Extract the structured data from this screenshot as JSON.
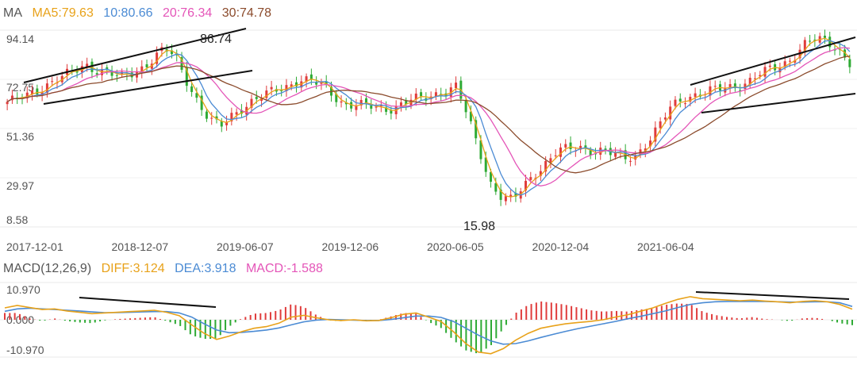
{
  "colors": {
    "up": "#e03c3c",
    "down": "#2eaa34",
    "ma5": "#e8a21a",
    "ma10": "#4b8bd4",
    "ma20": "#e455b8",
    "ma30": "#8b4b2c",
    "diff": "#e8a21a",
    "dea": "#4b8bd4",
    "macd": "#e455b8",
    "label": "#555555",
    "grid": "#e8e8e8",
    "trend": "#111111"
  },
  "legend": {
    "ma": {
      "title": "MA",
      "ma5": "MA5:79.63",
      "ma10": "10:80.66",
      "ma20": "20:76.34",
      "ma30": "30:74.78"
    },
    "macd": {
      "title": "MACD(12,26,9)",
      "diff": "DIFF:3.124",
      "dea": "DEA:3.918",
      "macd": "MACD:-1.588"
    }
  },
  "chart_data": [
    {
      "type": "candlestick",
      "title": "",
      "x_ticks": [
        "2017-12-01",
        "2018-12-07",
        "2019-06-07",
        "2019-12-06",
        "2020-06-05",
        "2020-12-04",
        "2021-06-04"
      ],
      "y_ticks": [
        "94.14",
        "72.75",
        "51.36",
        "29.97",
        "8.58"
      ],
      "ylim": [
        8.58,
        94.14
      ],
      "annotations": {
        "high": "86.74",
        "low": "15.98"
      },
      "grid": true,
      "legend_position": "top-left",
      "series_levels": [
        63,
        64,
        66,
        69,
        72,
        74,
        76,
        79,
        77,
        76,
        73,
        75,
        78,
        82,
        86,
        82,
        72,
        63,
        55,
        52,
        57,
        61,
        64,
        66,
        68,
        70,
        73,
        72,
        70,
        66,
        62,
        62,
        61,
        60,
        60,
        62,
        64,
        64,
        66,
        68,
        70,
        56,
        42,
        28,
        22,
        20,
        26,
        32,
        37,
        42,
        42,
        43,
        42,
        42,
        40,
        38,
        40,
        46,
        52,
        60,
        64,
        66,
        67,
        68,
        69,
        70,
        72,
        75,
        77,
        79,
        83,
        88,
        90,
        89,
        86,
        80
      ],
      "ma_legend": [
        "MA5",
        "MA10",
        "MA20",
        "MA30"
      ]
    },
    {
      "type": "macd",
      "title": "",
      "y_ticks": [
        "10.970",
        "0.000",
        "-10.970"
      ],
      "ylim": [
        -10.97,
        10.97
      ],
      "grid": true,
      "legend_position": "top-left",
      "diff_values": [
        3.5,
        4.2,
        3.6,
        3.0,
        3.2,
        2.6,
        2.2,
        1.8,
        2.0,
        2.2,
        2.4,
        2.6,
        2.8,
        2.2,
        1.2,
        -1.5,
        -4.0,
        -5.8,
        -4.8,
        -3.5,
        -2.5,
        -2.0,
        -1.0,
        0.8,
        1.3,
        0.6,
        0.0,
        -0.2,
        0.0,
        -0.3,
        -0.2,
        0.6,
        1.6,
        2.0,
        0.8,
        -0.5,
        -3.5,
        -7.0,
        -9.5,
        -10.0,
        -8.5,
        -6.0,
        -4.0,
        -2.5,
        -1.8,
        -1.2,
        -0.8,
        -0.5,
        0.0,
        0.8,
        1.5,
        2.5,
        3.5,
        4.8,
        6.0,
        6.8,
        6.2,
        6.0,
        5.8,
        5.6,
        5.8,
        5.5,
        5.3,
        5.0,
        5.4,
        5.6,
        5.3,
        4.5,
        3.124
      ],
      "dea_values": [
        2.5,
        3.2,
        3.4,
        3.2,
        3.0,
        2.8,
        2.6,
        2.3,
        2.1,
        2.1,
        2.2,
        2.3,
        2.4,
        2.4,
        2.0,
        0.8,
        -1.2,
        -3.0,
        -3.8,
        -3.7,
        -3.4,
        -3.0,
        -2.4,
        -1.5,
        -0.6,
        -0.1,
        0.1,
        0.0,
        -0.1,
        -0.2,
        -0.2,
        0.1,
        0.6,
        1.1,
        1.1,
        0.7,
        -0.5,
        -2.5,
        -4.5,
        -6.2,
        -7.2,
        -7.0,
        -6.2,
        -5.2,
        -4.3,
        -3.4,
        -2.6,
        -1.9,
        -1.2,
        -0.5,
        0.3,
        1.0,
        1.8,
        2.6,
        3.6,
        4.5,
        5.0,
        5.3,
        5.4,
        5.4,
        5.4,
        5.4,
        5.3,
        5.2,
        5.2,
        5.3,
        5.3,
        5.0,
        3.918
      ]
    }
  ]
}
